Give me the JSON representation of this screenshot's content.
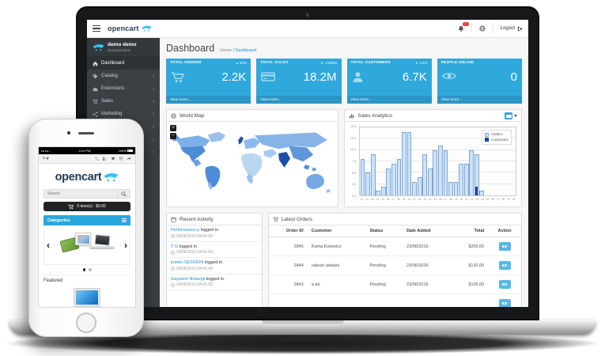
{
  "colors": {
    "kpi_tile_blue": "#2fa8dc",
    "accent_blue": "#1e91cf",
    "sidebar_bg": "#3b4045",
    "orders_fill": "#cfe2f5",
    "orders_border": "#7aa6d9",
    "customers_fill": "#1d4fa8",
    "action_button_blue": "#56b9e5",
    "categories_bar_blue": "#29a8dd",
    "alert_badge_red": "#e74c3c"
  },
  "admin": {
    "topbar": {
      "logo_text": "opencart",
      "logout_label": "Logout"
    },
    "sidebar": {
      "user_name": "demo demo",
      "user_role": "Demonstration",
      "items": [
        {
          "label": "Dashboard",
          "icon": "home-icon",
          "active": true,
          "chevron": false
        },
        {
          "label": "Catalog",
          "icon": "tag-icon",
          "active": false,
          "chevron": true
        },
        {
          "label": "Extensions",
          "icon": "puzzle-icon",
          "active": false,
          "chevron": true
        },
        {
          "label": "Sales",
          "icon": "cart-icon",
          "active": false,
          "chevron": true
        },
        {
          "label": "Marketing",
          "icon": "share-icon",
          "active": false,
          "chevron": true
        },
        {
          "label": "",
          "icon": "",
          "active": false,
          "chevron": true
        },
        {
          "label": "",
          "icon": "",
          "active": false,
          "chevron": true
        },
        {
          "label": "",
          "icon": "",
          "active": false,
          "chevron": true
        }
      ]
    },
    "page": {
      "title": "Dashboard",
      "breadcrumb_home": "Home",
      "breadcrumb_sep": "/",
      "breadcrumb_current": "Dashboard"
    },
    "kpis": [
      {
        "label": "TOTAL ORDERS",
        "badge": "▴ 40%",
        "value": "2.2K",
        "view_more": "View more...",
        "icon": "cart-icon"
      },
      {
        "label": "TOTAL SALES",
        "badge": "▾ -1188%",
        "value": "18.2M",
        "view_more": "View more...",
        "icon": "credit-card-icon"
      },
      {
        "label": "TOTAL CUSTOMERS",
        "badge": "▾ -11%",
        "value": "6.7K",
        "view_more": "View more...",
        "icon": "person-icon"
      },
      {
        "label": "PEOPLE ONLINE",
        "badge": "",
        "value": "0",
        "view_more": "View more...",
        "icon": "eye-icon"
      }
    ],
    "world_map": {
      "title": "World Map",
      "zoom_in": "+",
      "zoom_out": "−"
    },
    "sales_analytics": {
      "title": "Sales Analytics"
    },
    "recent_activity": {
      "title": "Recent Activity",
      "items": [
        {
          "name": "Performance p",
          "action": " logged in.",
          "time": "24/06/2016 04:41:04"
        },
        {
          "name": "T G",
          "action": " logged in.",
          "time": "24/06/2016 04:41:04"
        },
        {
          "name": "jmeter SESSION",
          "action": " logged in.",
          "time": "24/06/2016 04:41:04"
        },
        {
          "name": "Gayashn Nelavigi",
          "action": " logged in.",
          "time": "24/06/2016 04:41:03"
        }
      ]
    },
    "latest_orders": {
      "title": "Latest Orders",
      "headers": [
        "Order ID",
        "Customer",
        "Status",
        "Date Added",
        "Total",
        "Action"
      ],
      "rows": [
        {
          "id": "2845",
          "customer": "Kama Kotowicz",
          "status": "Pending",
          "date": "23/06/2016",
          "total": "$205.00"
        },
        {
          "id": "2844",
          "customer": "rakesh adwani",
          "status": "Pending",
          "date": "23/06/2016",
          "total": "$130.00"
        },
        {
          "id": "2843",
          "customer": "a ab",
          "status": "Pending",
          "date": "23/06/2016",
          "total": "$105.00"
        },
        {
          "id": "",
          "customer": "",
          "status": "",
          "date": "",
          "total": ""
        }
      ]
    }
  },
  "chart_data": {
    "type": "bar",
    "title": "Sales Analytics",
    "categories": [
      "01",
      "02",
      "03",
      "04",
      "05",
      "06",
      "07",
      "08",
      "09",
      "10",
      "11",
      "12",
      "13",
      "14",
      "15",
      "16",
      "17",
      "18",
      "19",
      "20",
      "21",
      "22",
      "23",
      "24",
      "25",
      "26",
      "27",
      "28",
      "29",
      "30"
    ],
    "series": [
      {
        "name": "Orders",
        "values": [
          8,
          5,
          9,
          1,
          2,
          6,
          7,
          8,
          14,
          14,
          3,
          4,
          9,
          6,
          10,
          11,
          10,
          3,
          3,
          7,
          7,
          10,
          9,
          1,
          0,
          0,
          0,
          0,
          0,
          0
        ]
      },
      {
        "name": "Customers",
        "values": [
          0,
          0,
          0,
          0,
          0,
          0,
          0,
          0,
          0,
          0,
          0,
          0,
          0,
          0,
          0,
          0,
          0,
          0,
          0,
          0,
          0,
          0,
          2,
          0,
          0,
          0,
          0,
          0,
          0,
          0
        ]
      }
    ],
    "xlabel": "",
    "ylabel": "",
    "ylim": [
      0,
      15
    ],
    "yticks": [
      0.0,
      2.5,
      5.0,
      7.5,
      10.0,
      12.5,
      15.0
    ],
    "grid": true,
    "legend_position": "top-right"
  },
  "phone": {
    "status": {
      "time": "4:21 PM",
      "battery": "100%"
    },
    "navbar": {
      "currency": "$"
    },
    "logo_text": "opencart",
    "search_placeholder": "Search",
    "cart_button_label": "0 item(s) - $0.00",
    "categories_label": "Categories",
    "featured_label": "Featured"
  }
}
